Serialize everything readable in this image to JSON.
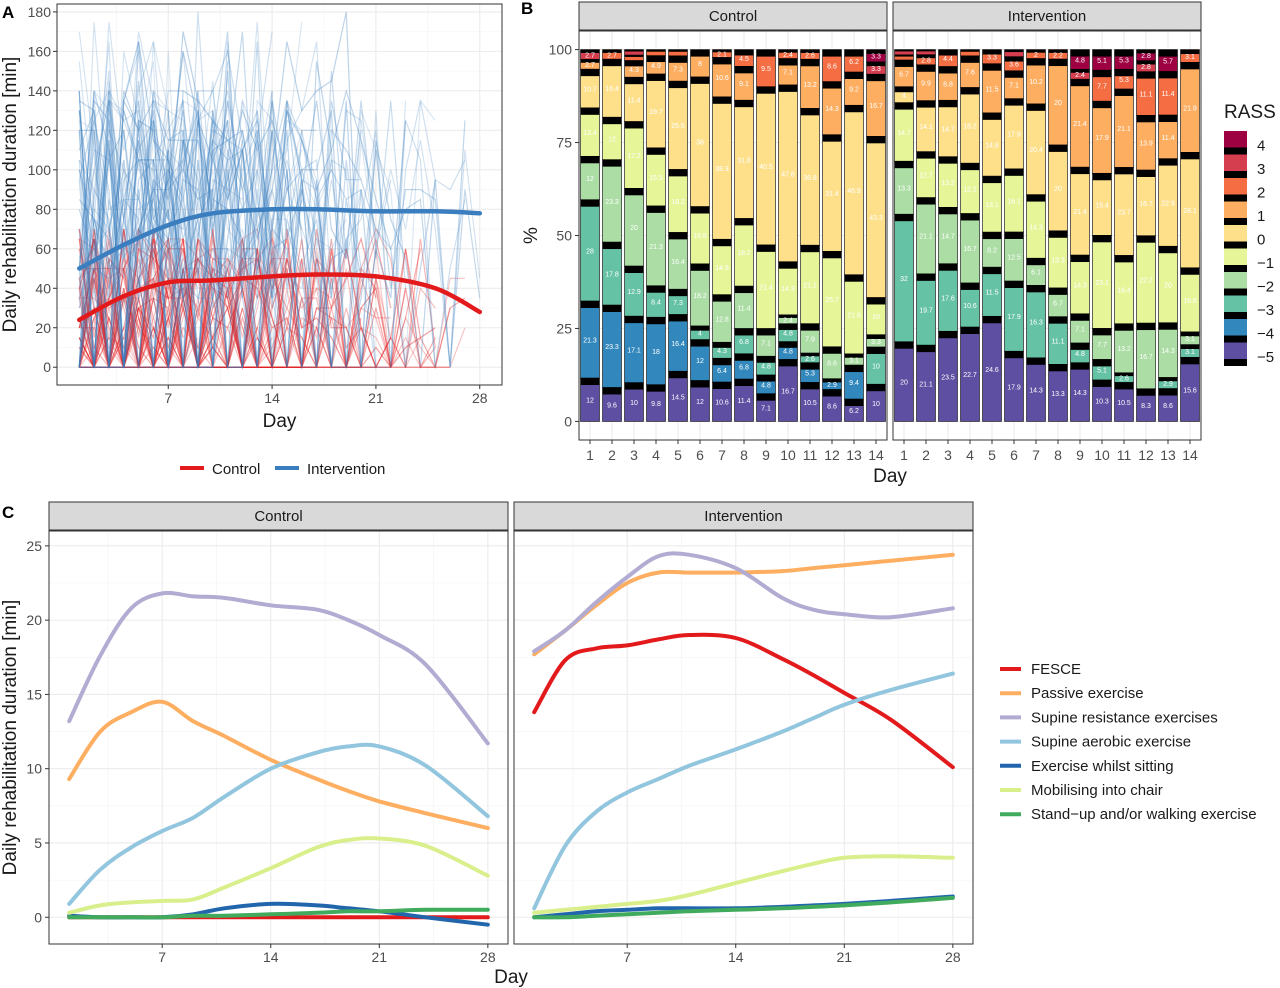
{
  "panels": {
    "A": {
      "letter": "A",
      "ylabel": "Daily rehabilitation duration [min]",
      "xlabel": "Day",
      "yticks": [
        0,
        20,
        40,
        60,
        80,
        100,
        120,
        140,
        160,
        180
      ],
      "xticks": [
        7,
        14,
        21,
        28
      ],
      "legend": [
        {
          "name": "Control",
          "color": "#e31a1c"
        },
        {
          "name": "Intervention",
          "color": "#3a7ebf"
        }
      ]
    },
    "B": {
      "letter": "B",
      "ylabel": "%",
      "xlabel": "Day",
      "facets": [
        "Control",
        "Intervention"
      ],
      "yticks": [
        0,
        25,
        50,
        75,
        100
      ],
      "days": [
        "1",
        "2",
        "3",
        "4",
        "5",
        "6",
        "7",
        "8",
        "9",
        "10",
        "11",
        "12",
        "13",
        "14"
      ],
      "legend_title": "RASS",
      "legend_levels": [
        "4",
        "3",
        "2",
        "1",
        "0",
        "−1",
        "−2",
        "−3",
        "−4",
        "−5"
      ]
    },
    "C": {
      "letter": "C",
      "ylabel": "Daily rehabilitation duration [min]",
      "xlabel": "Day",
      "facets": [
        "Control",
        "Intervention"
      ],
      "yticks": [
        0,
        5,
        10,
        15,
        20,
        25
      ],
      "xticks": [
        7,
        14,
        21,
        28
      ],
      "legend": [
        {
          "name": "FESCE",
          "color": "#e31a1c"
        },
        {
          "name": "Passive exercise",
          "color": "#fdae61"
        },
        {
          "name": "Supine resistance exercises",
          "color": "#b2abd2"
        },
        {
          "name": "Supine aerobic exercise",
          "color": "#92c5de"
        },
        {
          "name": "Exercise whilst sitting",
          "color": "#2166ac"
        },
        {
          "name": "Mobilising into chair",
          "color": "#d9ef8b"
        },
        {
          "name": "Stand−up and/or walking exercise",
          "color": "#41ab5d"
        }
      ]
    }
  },
  "colors": {
    "rass": {
      "4": "#9e0142",
      "3": "#d53e4f",
      "2": "#f46d43",
      "1": "#fdae61",
      "0": "#fee08b",
      "-1": "#e6f598",
      "-2": "#abdda4",
      "-3": "#66c2a5",
      "-4": "#3288bd",
      "-5": "#5e4fa2"
    },
    "strip_bg": "#d9d9d9",
    "grid": "#ebebeb"
  },
  "chart_data": [
    {
      "type": "line",
      "panel": "A",
      "title": "",
      "xlabel": "Day",
      "ylabel": "Daily rehabilitation duration [min]",
      "xlim": [
        0,
        28
      ],
      "ylim": [
        0,
        180
      ],
      "note_individual_lines": "individual patient trajectories drawn as faint lines",
      "series": [
        {
          "name": "Control",
          "x": [
            1,
            4,
            7,
            10,
            14,
            17,
            21,
            25,
            28
          ],
          "values": [
            24,
            36,
            43,
            44,
            46,
            47,
            46,
            40,
            28
          ]
        },
        {
          "name": "Intervention",
          "x": [
            1,
            4,
            7,
            10,
            14,
            17,
            21,
            25,
            28
          ],
          "values": [
            50,
            62,
            72,
            78,
            80,
            80,
            79,
            79,
            78
          ]
        }
      ]
    },
    {
      "type": "bar",
      "panel": "B",
      "stacked": true,
      "categories": [
        "1",
        "2",
        "3",
        "4",
        "5",
        "6",
        "7",
        "8",
        "9",
        "10",
        "11",
        "12",
        "13",
        "14"
      ],
      "ylim": [
        0,
        100
      ],
      "ylabel": "%",
      "xlabel": "Day",
      "levels": [
        "4",
        "3",
        "2",
        "1",
        "0",
        "-1",
        "-2",
        "-3",
        "-4",
        "-5"
      ],
      "facets": [
        {
          "name": "Control",
          "bars": [
            [
              0,
              2.7,
              0,
              2.7,
              10.7,
              13.4,
              12,
              28,
              21.3,
              12
            ],
            [
              0,
              0,
              2.7,
              0,
              16.4,
              12,
              23.3,
              17.8,
              23.3,
              9.6
            ],
            [
              0,
              1.4,
              1.4,
              4.3,
              11.4,
              17.2,
              20,
              12.9,
              17.1,
              10
            ],
            [
              0,
              0,
              1.6,
              4.9,
              19.7,
              15.5,
              21.3,
              8.4,
              18,
              9.8
            ],
            [
              0,
              0,
              1.8,
              7.3,
              25.5,
              18.2,
              16.4,
              7.3,
              16.4,
              14.5
            ],
            [
              0,
              0,
              0,
              8,
              38,
              16.8,
              18.2,
              4,
              12,
              12
            ],
            [
              0,
              0,
              2.1,
              10.6,
              38.3,
              14.9,
              12.8,
              4.3,
              6.4,
              10.6
            ],
            [
              0,
              0,
              4.5,
              9.1,
              31.8,
              18.2,
              11.4,
              6.8,
              6.8,
              11.4
            ],
            [
              0,
              0,
              9.5,
              0,
              40.5,
              21.4,
              7.1,
              4.8,
              4.8,
              7.1
            ],
            [
              0,
              0,
              2.4,
              7.1,
              47.6,
              14.3,
              2.4,
              4.8,
              4.8,
              16.7
            ],
            [
              0,
              0,
              2.6,
              13.2,
              36.8,
              21.1,
              7.9,
              2.6,
              5.3,
              10.5
            ],
            [
              0,
              0,
              8.6,
              14.3,
              31.4,
              25.7,
              8.6,
              0,
              2.9,
              8.6
            ],
            [
              0,
              0,
              6.2,
              9.2,
              46.9,
              21.9,
              3.1,
              0,
              9.4,
              6.2
            ],
            [
              3.3,
              3.3,
              0,
              16.7,
              43.3,
              10,
              3.3,
              10,
              0,
              10
            ]
          ]
        },
        {
          "name": "Intervention",
          "bars": [
            [
              0,
              1.3,
              1.3,
              6.7,
              4,
              14.7,
              13.3,
              32,
              0,
              20
            ],
            [
              0,
              1.4,
              2.8,
              9.9,
              14.1,
              12.7,
              21.1,
              19.7,
              0,
              21.1
            ],
            [
              0,
              0,
              4.4,
              8.8,
              14.7,
              13.2,
              14.7,
              17.6,
              0,
              23.5
            ],
            [
              0,
              0,
              1.5,
              7.6,
              18.2,
              12.1,
              16.7,
              10.6,
              0,
              22.7
            ],
            [
              0,
              0,
              3.3,
              11.5,
              14.8,
              13.1,
              8.2,
              11.5,
              0,
              24.6
            ],
            [
              0,
              1.8,
              3.6,
              7.1,
              17.9,
              16.1,
              12.5,
              17.9,
              0,
              17.9
            ],
            [
              0,
              0,
              2,
              10.2,
              20.4,
              14.3,
              6.1,
              16.3,
              0,
              14.3
            ],
            [
              0,
              0,
              2.2,
              20,
              20,
              13.3,
              6.7,
              11.1,
              0,
              13.3
            ],
            [
              4.8,
              2.4,
              0,
              21.4,
              21.4,
              14.3,
              7.1,
              4.8,
              0,
              14.3
            ],
            [
              5.1,
              0,
              7.7,
              17.9,
              15.4,
              23.1,
              7.7,
              5.1,
              0,
              10.3
            ],
            [
              5.3,
              0,
              5.3,
              21.1,
              23.7,
              18.4,
              13.2,
              2.6,
              0,
              10.5
            ],
            [
              2.8,
              2.8,
              11.1,
              13.9,
              16.7,
              22.2,
              16.7,
              0,
              0,
              8.3
            ],
            [
              5.7,
              0,
              11.4,
              11.4,
              22.9,
              20,
              14.3,
              2.9,
              0,
              8.6
            ],
            [
              0,
              0,
              3.1,
              21.9,
              28.1,
              15.6,
              3.1,
              3.1,
              0,
              15.6
            ]
          ]
        }
      ]
    },
    {
      "type": "line",
      "panel": "C",
      "xlabel": "Day",
      "ylabel": "Daily rehabilitation duration [min]",
      "xlim": [
        0,
        28
      ],
      "ylim": [
        -1,
        26
      ],
      "facets": [
        {
          "name": "Control",
          "x": [
            1,
            3,
            5,
            7,
            9,
            11,
            14,
            17,
            19,
            21,
            24,
            28
          ],
          "series": [
            {
              "name": "FESCE",
              "values": [
                0,
                0,
                0,
                0,
                0,
                0,
                0,
                0,
                0,
                0,
                0,
                0
              ]
            },
            {
              "name": "Passive exercise",
              "values": [
                9.3,
                12.5,
                13.8,
                14.5,
                13.2,
                12.2,
                10.6,
                9.3,
                8.5,
                7.8,
                7,
                6
              ]
            },
            {
              "name": "Supine resistance exercises",
              "values": [
                13.2,
                17.6,
                20.8,
                21.8,
                21.6,
                21.5,
                21,
                20.7,
                20,
                19,
                17,
                11.7
              ]
            },
            {
              "name": "Supine aerobic exercise",
              "values": [
                0.9,
                3.2,
                4.7,
                5.8,
                6.7,
                8.1,
                10,
                11.1,
                11.5,
                11.5,
                10.2,
                6.8
              ]
            },
            {
              "name": "Exercise whilst sitting",
              "values": [
                0.1,
                0,
                0,
                0,
                0.2,
                0.6,
                0.9,
                0.8,
                0.6,
                0.4,
                0,
                -0.5
              ]
            },
            {
              "name": "Mobilising into chair",
              "values": [
                0.3,
                0.8,
                1,
                1.1,
                1.2,
                2,
                3.3,
                4.7,
                5.2,
                5.3,
                4.8,
                2.8
              ]
            },
            {
              "name": "Stand−up and/or walking exercise",
              "values": [
                0,
                0,
                0,
                0,
                0.1,
                0.1,
                0.2,
                0.3,
                0.4,
                0.4,
                0.5,
                0.5
              ]
            }
          ]
        },
        {
          "name": "Intervention",
          "x": [
            1,
            3,
            5,
            7,
            9,
            11,
            14,
            17,
            19,
            21,
            24,
            28
          ],
          "series": [
            {
              "name": "FESCE",
              "values": [
                13.8,
                17.3,
                18.1,
                18.3,
                18.7,
                19,
                18.8,
                17.4,
                16.3,
                15.1,
                13.3,
                10.1
              ]
            },
            {
              "name": "Passive exercise",
              "values": [
                17.7,
                19.3,
                21,
                22.5,
                23.2,
                23.2,
                23.2,
                23.3,
                23.5,
                23.7,
                24,
                24.4
              ]
            },
            {
              "name": "Supine resistance exercises",
              "values": [
                17.9,
                19.3,
                21.2,
                22.9,
                24.3,
                24.4,
                23.5,
                21.5,
                20.7,
                20.4,
                20.2,
                20.8
              ]
            },
            {
              "name": "Supine aerobic exercise",
              "values": [
                0.6,
                4.8,
                7.1,
                8.4,
                9.3,
                10.2,
                11.3,
                12.5,
                13.4,
                14.3,
                15.3,
                16.4
              ]
            },
            {
              "name": "Exercise whilst sitting",
              "values": [
                0,
                0.2,
                0.4,
                0.5,
                0.6,
                0.6,
                0.6,
                0.7,
                0.8,
                0.9,
                1.1,
                1.4
              ]
            },
            {
              "name": "Mobilising into chair",
              "values": [
                0.3,
                0.5,
                0.7,
                0.9,
                1.1,
                1.5,
                2.3,
                3.1,
                3.6,
                4,
                4.1,
                4
              ]
            },
            {
              "name": "Stand−up and/or walking exercise",
              "values": [
                0,
                0,
                0.1,
                0.2,
                0.3,
                0.4,
                0.5,
                0.6,
                0.7,
                0.8,
                1,
                1.3
              ]
            }
          ]
        }
      ]
    }
  ]
}
